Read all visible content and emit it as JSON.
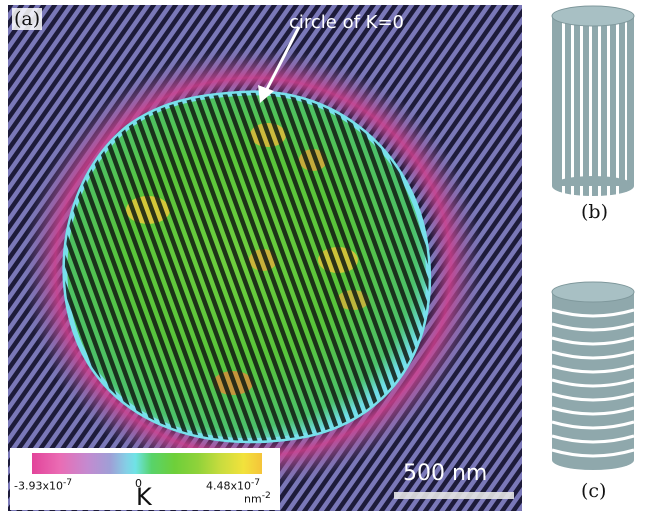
{
  "panel_labels": {
    "a": "(a)",
    "b": "(b)",
    "c": "(c)"
  },
  "annotation": {
    "text": "circle of K=0"
  },
  "colorbar": {
    "min_label": "-3.93x10",
    "min_exp": "-7",
    "zero_label": "0",
    "max_label": "4.48x10",
    "max_exp": "-7",
    "variable": "K",
    "unit": "nm",
    "unit_exp": "-2",
    "colors": [
      "#e2449a",
      "#c48ad0",
      "#84cfe6",
      "#58d36a",
      "#8fd23a",
      "#f2e23c"
    ]
  },
  "scale_bar": {
    "label": "500 nm"
  },
  "colors": {
    "cylinder": "#8fa8ac",
    "cylinder_top": "#a8c0c4",
    "stripe": "#ffffff"
  }
}
